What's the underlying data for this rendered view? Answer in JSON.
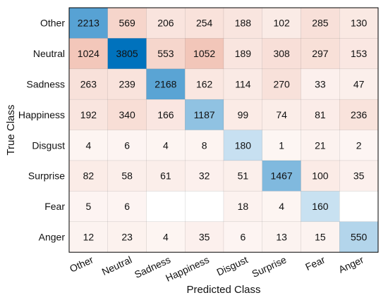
{
  "chart_data": {
    "type": "heatmap",
    "title": "",
    "xlabel": "Predicted Class",
    "ylabel": "True Class",
    "row_labels": [
      "Other",
      "Neutral",
      "Sadness",
      "Happiness",
      "Disgust",
      "Surprise",
      "Fear",
      "Anger"
    ],
    "col_labels": [
      "Other",
      "Neutral",
      "Sadness",
      "Happiness",
      "Disgust",
      "Surprise",
      "Fear",
      "Anger"
    ],
    "values": [
      [
        2213,
        569,
        206,
        254,
        188,
        102,
        285,
        130
      ],
      [
        1024,
        3805,
        553,
        1052,
        189,
        308,
        297,
        153
      ],
      [
        263,
        239,
        2168,
        162,
        114,
        270,
        33,
        47
      ],
      [
        192,
        340,
        166,
        1187,
        99,
        74,
        81,
        236
      ],
      [
        4,
        6,
        4,
        8,
        180,
        1,
        21,
        2
      ],
      [
        82,
        58,
        61,
        32,
        51,
        1467,
        100,
        35
      ],
      [
        5,
        6,
        null,
        null,
        18,
        4,
        160,
        null
      ],
      [
        12,
        23,
        4,
        35,
        6,
        13,
        15,
        550
      ]
    ],
    "colors": {
      "diagonal_high": "#0072bd",
      "diagonal_low": "#ffffff",
      "offdiag_high": "#d9532a",
      "offdiag_low": "#ffffff",
      "grid": "#000000"
    }
  }
}
